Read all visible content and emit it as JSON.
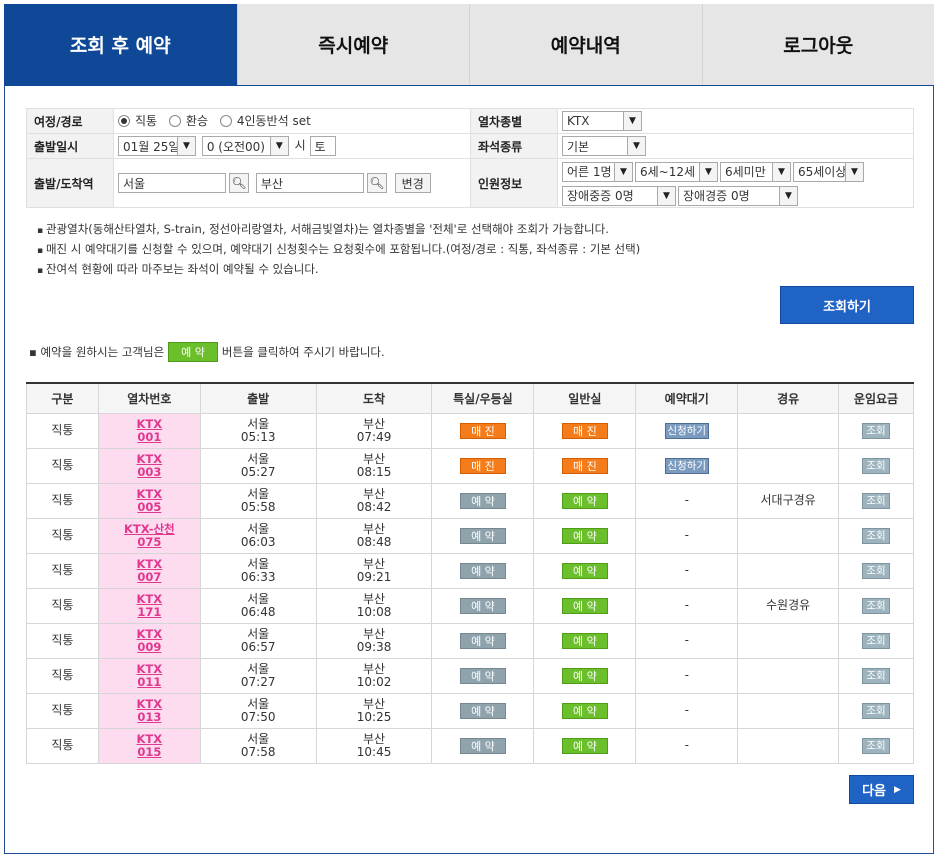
{
  "tabs": [
    {
      "label": "조회 후 예약",
      "active": true
    },
    {
      "label": "즉시예약",
      "active": false
    },
    {
      "label": "예약내역",
      "active": false
    },
    {
      "label": "로그아웃",
      "active": false
    }
  ],
  "form": {
    "route_label": "여정/경로",
    "route_options": [
      "직통",
      "환승",
      "4인동반석 set"
    ],
    "route_selected": "직통",
    "train_type_label": "열차종별",
    "train_type_value": "KTX",
    "date_label": "출발일시",
    "date_value": "01월 25일",
    "hour_value": "0 (오전00)",
    "hour_suffix": "시",
    "weekday_value": "토",
    "seat_type_label": "좌석종류",
    "seat_type_value": "기본",
    "station_label": "출발/도착역",
    "departure_value": "서울",
    "arrival_value": "부산",
    "change_button": "변경",
    "passenger_label": "인원정보",
    "passengers": {
      "adult": "어른 1명",
      "child": "6세~12세",
      "infant": "6세미만",
      "senior": "65세이상",
      "disabled_severe": "장애중증 0명",
      "disabled_mild": "장애경증 0명"
    }
  },
  "notes": [
    "관광열차(동해산타열차, S-train, 정선아리랑열차, 서해금빛열차)는 열차종별을 '전체'로 선택해야 조회가 가능합니다.",
    "매진 시 예약대기를 신청할 수 있으며, 예약대기 신청횟수는 요청횟수에 포함됩니다.(여정/경로 : 직통, 좌석종류 : 기본 선택)",
    "잔여석 현황에 따라 마주보는 좌석이 예약될 수 있습니다."
  ],
  "search_button": "조회하기",
  "hint": {
    "before": "예약을 원하시는 고객님은",
    "chip": "예 약",
    "after": "버튼을 클릭하여 주시기 바랍니다."
  },
  "table": {
    "headers": [
      "구분",
      "열차번호",
      "출발",
      "도착",
      "특실/우등실",
      "일반실",
      "예약대기",
      "경유",
      "운임요금"
    ],
    "rows": [
      {
        "type": "직통",
        "train": "KTX",
        "num": "001",
        "dep": "서울",
        "dep_time": "05:13",
        "arr": "부산",
        "arr_time": "07:49",
        "first": "매 진",
        "first_kind": "sold",
        "std": "매 진",
        "std_kind": "sold",
        "wait": "신청하기",
        "via": "",
        "fare": "조회"
      },
      {
        "type": "직통",
        "train": "KTX",
        "num": "003",
        "dep": "서울",
        "dep_time": "05:27",
        "arr": "부산",
        "arr_time": "08:15",
        "first": "매 진",
        "first_kind": "sold",
        "std": "매 진",
        "std_kind": "sold",
        "wait": "신청하기",
        "via": "",
        "fare": "조회"
      },
      {
        "type": "직통",
        "train": "KTX",
        "num": "005",
        "dep": "서울",
        "dep_time": "05:58",
        "arr": "부산",
        "arr_time": "08:42",
        "first": "예 약",
        "first_kind": "gray",
        "std": "예 약",
        "std_kind": "green",
        "wait": "-",
        "via": "서대구경유",
        "fare": "조회"
      },
      {
        "type": "직통",
        "train": "KTX-산천",
        "num": "075",
        "dep": "서울",
        "dep_time": "06:03",
        "arr": "부산",
        "arr_time": "08:48",
        "first": "예 약",
        "first_kind": "gray",
        "std": "예 약",
        "std_kind": "green",
        "wait": "-",
        "via": "",
        "fare": "조회"
      },
      {
        "type": "직통",
        "train": "KTX",
        "num": "007",
        "dep": "서울",
        "dep_time": "06:33",
        "arr": "부산",
        "arr_time": "09:21",
        "first": "예 약",
        "first_kind": "gray",
        "std": "예 약",
        "std_kind": "green",
        "wait": "-",
        "via": "",
        "fare": "조회"
      },
      {
        "type": "직통",
        "train": "KTX",
        "num": "171",
        "dep": "서울",
        "dep_time": "06:48",
        "arr": "부산",
        "arr_time": "10:08",
        "first": "예 약",
        "first_kind": "gray",
        "std": "예 약",
        "std_kind": "green",
        "wait": "-",
        "via": "수원경유",
        "fare": "조회"
      },
      {
        "type": "직통",
        "train": "KTX",
        "num": "009",
        "dep": "서울",
        "dep_time": "06:57",
        "arr": "부산",
        "arr_time": "09:38",
        "first": "예 약",
        "first_kind": "gray",
        "std": "예 약",
        "std_kind": "green",
        "wait": "-",
        "via": "",
        "fare": "조회"
      },
      {
        "type": "직통",
        "train": "KTX",
        "num": "011",
        "dep": "서울",
        "dep_time": "07:27",
        "arr": "부산",
        "arr_time": "10:02",
        "first": "예 약",
        "first_kind": "gray",
        "std": "예 약",
        "std_kind": "green",
        "wait": "-",
        "via": "",
        "fare": "조회"
      },
      {
        "type": "직통",
        "train": "KTX",
        "num": "013",
        "dep": "서울",
        "dep_time": "07:50",
        "arr": "부산",
        "arr_time": "10:25",
        "first": "예 약",
        "first_kind": "gray",
        "std": "예 약",
        "std_kind": "green",
        "wait": "-",
        "via": "",
        "fare": "조회"
      },
      {
        "type": "직통",
        "train": "KTX",
        "num": "015",
        "dep": "서울",
        "dep_time": "07:58",
        "arr": "부산",
        "arr_time": "10:45",
        "first": "예 약",
        "first_kind": "gray",
        "std": "예 약",
        "std_kind": "green",
        "wait": "-",
        "via": "",
        "fare": "조회"
      }
    ]
  },
  "next_button": "다음",
  "colors": {
    "primary": "#0e4896",
    "button": "#1f63c5",
    "sold": "#f57c1b",
    "green": "#6abf2b",
    "train_bg": "#fddcf0",
    "train_link": "#e0388f"
  }
}
